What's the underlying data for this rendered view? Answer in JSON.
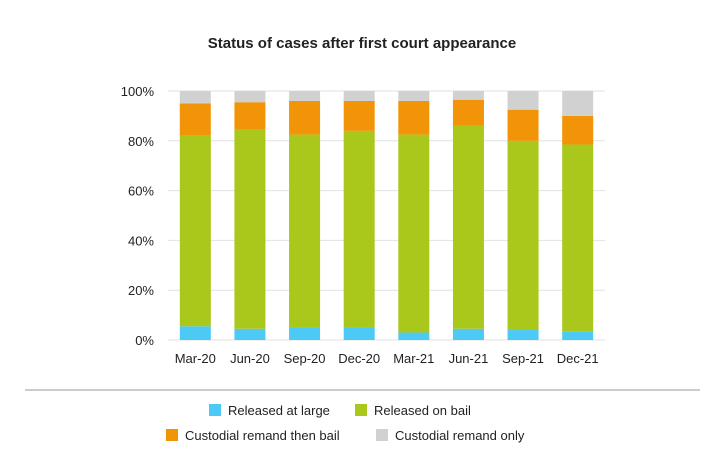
{
  "chart_data": {
    "type": "bar",
    "stacked": true,
    "title": "Status of cases after first court appearance",
    "xlabel": "",
    "ylabel": "",
    "ylim": [
      0,
      100
    ],
    "y_ticks": [
      "0%",
      "20%",
      "40%",
      "60%",
      "80%",
      "100%"
    ],
    "y_tick_values": [
      0,
      20,
      40,
      60,
      80,
      100
    ],
    "grid": true,
    "legend_position": "bottom",
    "categories": [
      "Mar-20",
      "Jun-20",
      "Sep-20",
      "Dec-20",
      "Mar-21",
      "Jun-21",
      "Sep-21",
      "Dec-21"
    ],
    "series": [
      {
        "name": "Released at large",
        "color": "#4dc9f6",
        "values": [
          5.5,
          4.5,
          5,
          5,
          3,
          4.5,
          4,
          3.5
        ]
      },
      {
        "name": "Released on bail",
        "color": "#a9c81b",
        "values": [
          76.5,
          80,
          77.5,
          79,
          79.5,
          81.5,
          76,
          75
        ]
      },
      {
        "name": "Custodial remand then bail",
        "color": "#f29407",
        "values": [
          13,
          11,
          13.5,
          12,
          13.5,
          10.5,
          12.5,
          11.5
        ]
      },
      {
        "name": "Custodial remand only",
        "color": "#d1d1d1",
        "values": [
          5,
          4.5,
          4,
          4,
          4,
          3.5,
          7.5,
          10
        ]
      }
    ]
  }
}
